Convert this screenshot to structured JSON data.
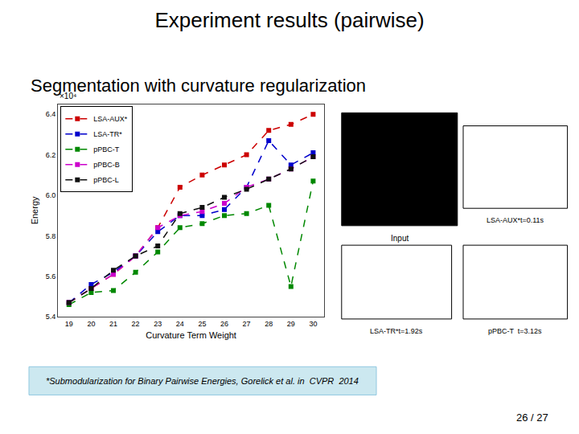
{
  "chart_data": {
    "type": "line",
    "title": "Experiment results (pairwise)",
    "subtitle": "Segmentation with curvature regularization",
    "x_label": "Curvature Term Weight",
    "y_label": "Energy",
    "x": [
      19,
      20,
      21,
      22,
      23,
      24,
      25,
      26,
      27,
      28,
      29,
      30
    ],
    "xlim": [
      18.5,
      30.5
    ],
    "xticks": [
      19,
      20,
      21,
      22,
      23,
      24,
      25,
      26,
      27,
      28,
      29,
      30
    ],
    "ylim": [
      5.4,
      6.45
    ],
    "yticks": [
      5.4,
      5.6,
      5.8,
      {
        "value": 6.0,
        "label": "6.0"
      },
      6.2,
      6.4
    ],
    "series": [
      {
        "name": "LSA-AUX*",
        "color": "#cc0000",
        "marker": "square",
        "line_style": "dashed",
        "values": [
          5.47,
          5.54,
          5.61,
          5.7,
          5.84,
          6.04,
          6.1,
          6.15,
          6.2,
          6.32,
          6.35,
          6.4
        ]
      },
      {
        "name": "LSA-TR*",
        "color": "#0000cc",
        "marker": "square",
        "line_style": "dashed",
        "values": [
          5.47,
          5.56,
          5.62,
          5.7,
          5.82,
          5.9,
          5.9,
          5.93,
          6.04,
          6.27,
          6.15,
          6.21
        ]
      },
      {
        "name": "pPBC-T",
        "color": "#008800",
        "marker": "square",
        "line_style": "dashed",
        "values": [
          5.46,
          5.52,
          5.53,
          5.62,
          5.72,
          5.84,
          5.86,
          5.9,
          5.91,
          5.95,
          5.55,
          6.07
        ]
      },
      {
        "name": "pPBC-B",
        "color": "#cc00cc",
        "marker": "square",
        "line_style": "dashed",
        "values": [
          5.47,
          5.54,
          5.61,
          5.7,
          5.84,
          5.9,
          5.92,
          5.96,
          6.04,
          6.08,
          6.13,
          6.19
        ]
      },
      {
        "name": "pPBC-L",
        "color": "#111111",
        "marker": "square",
        "line_style": "dashed",
        "values": [
          5.47,
          5.54,
          5.63,
          5.7,
          5.75,
          5.91,
          5.94,
          5.99,
          6.03,
          6.08,
          6.13,
          6.19
        ]
      }
    ],
    "legend": "upper left",
    "grid": false,
    "annotations": [
      "×10⁴",
      "Input",
      "LSA-AUX*t=0.11s",
      "LSA-TR*t=1.92s",
      "pPBC-T  t=3.12s"
    ],
    "footnote": "*Submodularization for Binary Pairwise Energies, Gorelick et al. in  CVPR  2014",
    "page": "26 / 27"
  }
}
